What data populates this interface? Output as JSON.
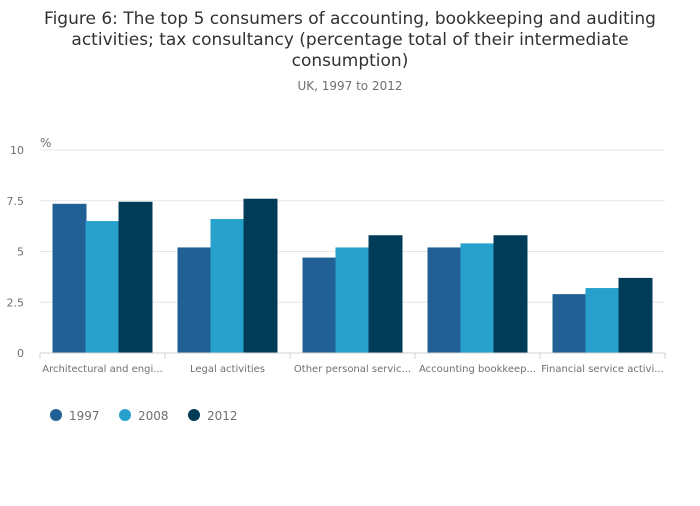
{
  "chart_data": {
    "type": "bar",
    "title": "Figure 6: The top 5 consumers of accounting, bookkeeping and auditing activities; tax consultancy (percentage total of their intermediate consumption)",
    "title_lines": [
      "Figure 6: The top 5 consumers of accounting, bookkeeping and auditing",
      "activities; tax consultancy (percentage total of their intermediate",
      "consumption)"
    ],
    "subtitle": "UK, 1997 to 2012",
    "xlabel": "",
    "ylabel": "%",
    "ylim": [
      0,
      10
    ],
    "yticks": [
      0,
      2.5,
      5,
      7.5,
      10
    ],
    "ytick_labels": [
      "0",
      "2.5",
      "5",
      "7.5",
      "10"
    ],
    "grid": true,
    "legend_position": "bottom-left",
    "categories": [
      "Architectural and engi...",
      "Legal activities",
      "Other personal servic...",
      "Accounting bookkeep...",
      "Financial service activi..."
    ],
    "series": [
      {
        "name": "1997",
        "color": "#206095",
        "values": [
          7.35,
          5.2,
          4.7,
          5.2,
          2.9
        ]
      },
      {
        "name": "2008",
        "color": "#27a0cc",
        "values": [
          6.5,
          6.6,
          5.2,
          5.4,
          3.2
        ]
      },
      {
        "name": "2012",
        "color": "#003c57",
        "values": [
          7.45,
          7.6,
          5.8,
          5.8,
          3.7
        ]
      }
    ]
  }
}
